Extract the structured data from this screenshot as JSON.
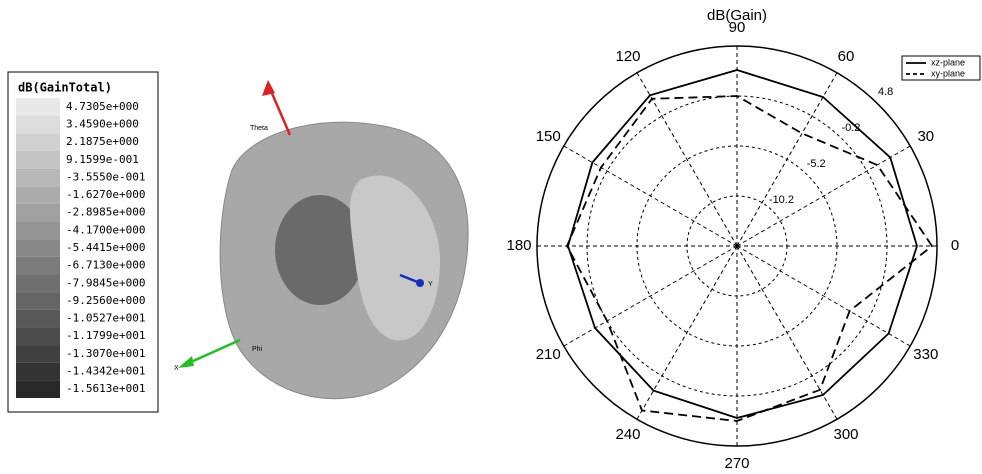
{
  "chart_data": [
    {
      "type": "colorbar3d",
      "title": "dB(GainTotal)",
      "ticks": [
        {
          "value": 4.7305,
          "label": "4.7305e+000"
        },
        {
          "value": 3.459,
          "label": "3.4590e+000"
        },
        {
          "value": 2.1875,
          "label": "2.1875e+000"
        },
        {
          "value": 0.91599,
          "label": "9.1599e-001"
        },
        {
          "value": -0.3555,
          "label": "-3.5550e-001"
        },
        {
          "value": -1.627,
          "label": "-1.6270e+000"
        },
        {
          "value": -2.8985,
          "label": "-2.8985e+000"
        },
        {
          "value": -4.17,
          "label": "-4.1700e+000"
        },
        {
          "value": -5.4415,
          "label": "-5.4415e+000"
        },
        {
          "value": -6.713,
          "label": "-6.7130e+000"
        },
        {
          "value": -7.9845,
          "label": "-7.9845e+000"
        },
        {
          "value": -9.256,
          "label": "-9.2560e+000"
        },
        {
          "value": -10.527,
          "label": "-1.0527e+001"
        },
        {
          "value": -11.799,
          "label": "-1.1799e+001"
        },
        {
          "value": -13.07,
          "label": "-1.3070e+001"
        },
        {
          "value": -14.342,
          "label": "-1.4342e+001"
        },
        {
          "value": -15.613,
          "label": "-1.5613e+001"
        }
      ],
      "axis_labels": [
        "Theta",
        "Phi",
        "Y",
        "X"
      ]
    },
    {
      "type": "polar",
      "title": "dB(Gain)",
      "theta": [
        0,
        30,
        60,
        90,
        120,
        150,
        180,
        210,
        240,
        270,
        300,
        330
      ],
      "thetaticks": [
        0,
        30,
        60,
        90,
        120,
        150,
        180,
        210,
        240,
        270,
        300,
        330
      ],
      "rlim": [
        -15.2,
        4.8
      ],
      "rticks": [
        4.8,
        -0.2,
        -5.2,
        -10.2
      ],
      "series": [
        {
          "name": "xz-plane",
          "color": "#000000",
          "dash": "solid",
          "values": [
            2.8,
            2.5,
            2.0,
            2.4,
            2.2,
            1.5,
            1.7,
            1.2,
            1.5,
            2.0,
            2.0,
            2.3
          ]
        },
        {
          "name": "xy-plane",
          "color": "#000000",
          "dash": "dashed",
          "values": [
            4.3,
            1.0,
            -2.2,
            -0.2,
            1.8,
            0.5,
            1.8,
            -0.2,
            3.8,
            2.3,
            1.4,
            -2.2
          ]
        }
      ]
    }
  ]
}
